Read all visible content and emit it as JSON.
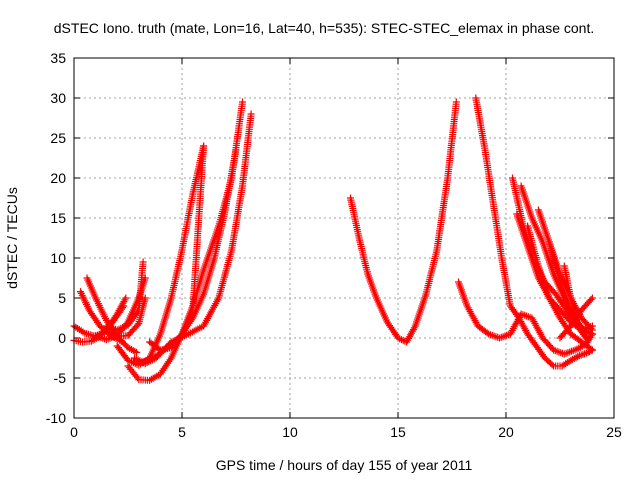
{
  "chart_data": {
    "type": "scatter",
    "title": "dSTEC Iono. truth (mate, Lon=16, Lat=40, h=535): STEC-STEC_elemax in phase cont.",
    "xlabel": "GPS time / hours of day 155 of year 2011",
    "ylabel": "dSTEC  / TECUs",
    "xlim": [
      0,
      25
    ],
    "ylim": [
      -10,
      35
    ],
    "xticks": [
      0,
      5,
      10,
      15,
      20,
      25
    ],
    "yticks": [
      -10,
      -5,
      0,
      5,
      10,
      15,
      20,
      25,
      30,
      35
    ],
    "grid": true,
    "marker": "+",
    "color": "#ff0000",
    "series": [
      {
        "x": [
          0.0,
          0.5,
          1.0,
          1.5,
          2.0,
          2.3
        ],
        "y": [
          1.5,
          0.6,
          0.2,
          1.0,
          2.8,
          4.0
        ]
      },
      {
        "x": [
          0.0,
          0.4,
          0.8,
          1.2,
          1.6,
          2.0,
          2.4
        ],
        "y": [
          -0.3,
          -0.5,
          -0.4,
          0.2,
          1.3,
          3.0,
          5.0
        ]
      },
      {
        "x": [
          0.3,
          0.7,
          1.2,
          1.7,
          2.2
        ],
        "y": [
          5.8,
          3.5,
          1.5,
          0.3,
          -0.4
        ]
      },
      {
        "x": [
          0.6,
          1.0,
          1.5,
          2.0,
          2.5,
          2.9
        ],
        "y": [
          7.5,
          5.0,
          2.2,
          0.2,
          -1.2,
          -1.8
        ]
      },
      {
        "x": [
          1.0,
          1.5,
          2.0,
          2.5,
          3.0,
          3.3
        ],
        "y": [
          0.3,
          -0.2,
          0.3,
          2.0,
          5.0,
          7.5
        ]
      },
      {
        "x": [
          1.5,
          2.0,
          2.5,
          3.0,
          3.3
        ],
        "y": [
          0.8,
          0.2,
          0.3,
          1.8,
          5.0
        ]
      },
      {
        "x": [
          1.5,
          2.0,
          2.5,
          3.0,
          3.2
        ],
        "y": [
          1.5,
          1.0,
          1.6,
          3.5,
          9.5
        ]
      },
      {
        "x": [
          2.0,
          2.5,
          3.0,
          3.5,
          4.0,
          4.5,
          5.0,
          5.5,
          6.0
        ],
        "y": [
          -1.0,
          -2.8,
          -3.4,
          -2.5,
          0.5,
          5.0,
          11.0,
          18.0,
          24.0
        ]
      },
      {
        "x": [
          2.5,
          3.0,
          3.5,
          4.0,
          4.5,
          5.0,
          5.5,
          6.0,
          6.7,
          7.3,
          7.8
        ],
        "y": [
          -3.5,
          -5.2,
          -5.3,
          -4.5,
          -2.5,
          0.5,
          4.0,
          8.5,
          14.0,
          20.0,
          29.5
        ]
      },
      {
        "x": [
          2.8,
          3.3,
          3.8,
          4.5,
          5.3,
          6.0,
          6.7,
          7.3,
          7.8,
          8.2
        ],
        "y": [
          -2.5,
          -3.2,
          -2.5,
          -0.5,
          0.5,
          1.5,
          5.0,
          11.0,
          19.0,
          28.0
        ]
      },
      {
        "x": [
          3.2,
          3.7,
          4.3,
          5.0,
          5.5,
          6.0
        ],
        "y": [
          -3.0,
          -2.5,
          -1.2,
          0.3,
          3.5,
          24.0
        ]
      },
      {
        "x": [
          3.5,
          4.0,
          4.5,
          5.0,
          5.5,
          6.0,
          6.5,
          7.0,
          7.5
        ],
        "y": [
          -0.5,
          -1.5,
          -1.2,
          0.5,
          2.5,
          5.5,
          10.0,
          16.0,
          23.5
        ]
      },
      {
        "x": [
          12.8,
          13.2,
          13.6,
          14.0,
          14.5,
          15.0,
          15.4,
          15.8,
          16.3,
          16.8,
          17.3,
          17.7
        ],
        "y": [
          17.5,
          12.5,
          8.0,
          5.0,
          2.0,
          0.0,
          -0.5,
          1.5,
          5.5,
          11.0,
          20.0,
          29.5
        ]
      },
      {
        "x": [
          17.8,
          18.2,
          18.7,
          19.2,
          19.7,
          20.2,
          20.7,
          21.2,
          21.7,
          22.2,
          22.7,
          23.2,
          23.7,
          24.0
        ],
        "y": [
          7.0,
          4.0,
          1.5,
          0.5,
          0.0,
          0.5,
          3.0,
          2.5,
          0.0,
          -1.5,
          -2.0,
          -1.5,
          -0.8,
          0.5
        ]
      },
      {
        "x": [
          18.6,
          19.0,
          19.4,
          19.8,
          20.2,
          20.6,
          21.0,
          21.4,
          21.8,
          22.2,
          22.6,
          23.0,
          23.4,
          23.8,
          24.0
        ],
        "y": [
          30.0,
          24.0,
          17.0,
          10.0,
          4.0,
          2.5,
          0.5,
          -1.0,
          -2.5,
          -3.5,
          -3.5,
          -2.8,
          -2.2,
          -1.8,
          -1.5
        ]
      },
      {
        "x": [
          20.3,
          20.8,
          21.3,
          21.8,
          22.3,
          22.8,
          23.3,
          23.8
        ],
        "y": [
          20.0,
          14.0,
          9.5,
          7.0,
          5.5,
          3.5,
          1.5,
          -0.2
        ]
      },
      {
        "x": [
          20.5,
          21.0,
          21.5,
          22.0,
          22.5,
          23.0,
          23.5,
          24.0
        ],
        "y": [
          15.5,
          11.5,
          7.5,
          5.0,
          3.5,
          2.0,
          1.0,
          1.5
        ]
      },
      {
        "x": [
          20.7,
          21.2,
          21.7,
          22.2,
          22.7,
          23.2,
          23.7
        ],
        "y": [
          19.0,
          15.0,
          12.0,
          8.0,
          5.0,
          2.0,
          0.0
        ]
      },
      {
        "x": [
          21.0,
          21.5,
          22.0,
          22.5,
          23.0,
          23.5,
          24.0
        ],
        "y": [
          14.0,
          9.0,
          5.0,
          2.5,
          0.5,
          -0.5,
          -1.5
        ]
      },
      {
        "x": [
          21.5,
          22.0,
          22.5,
          23.0,
          23.5,
          24.0
        ],
        "y": [
          16.0,
          12.0,
          8.0,
          5.0,
          2.5,
          1.0
        ]
      },
      {
        "x": [
          22.0,
          22.5,
          23.0,
          23.5,
          24.0
        ],
        "y": [
          12.0,
          7.0,
          3.5,
          1.0,
          0.5
        ]
      },
      {
        "x": [
          22.7,
          23.0,
          23.3,
          23.6,
          24.0
        ],
        "y": [
          9.0,
          5.0,
          2.0,
          1.0,
          0.5
        ]
      },
      {
        "x": [
          22.5,
          23.0,
          23.5,
          24.0
        ],
        "y": [
          0.0,
          1.5,
          3.5,
          5.0
        ]
      }
    ]
  }
}
